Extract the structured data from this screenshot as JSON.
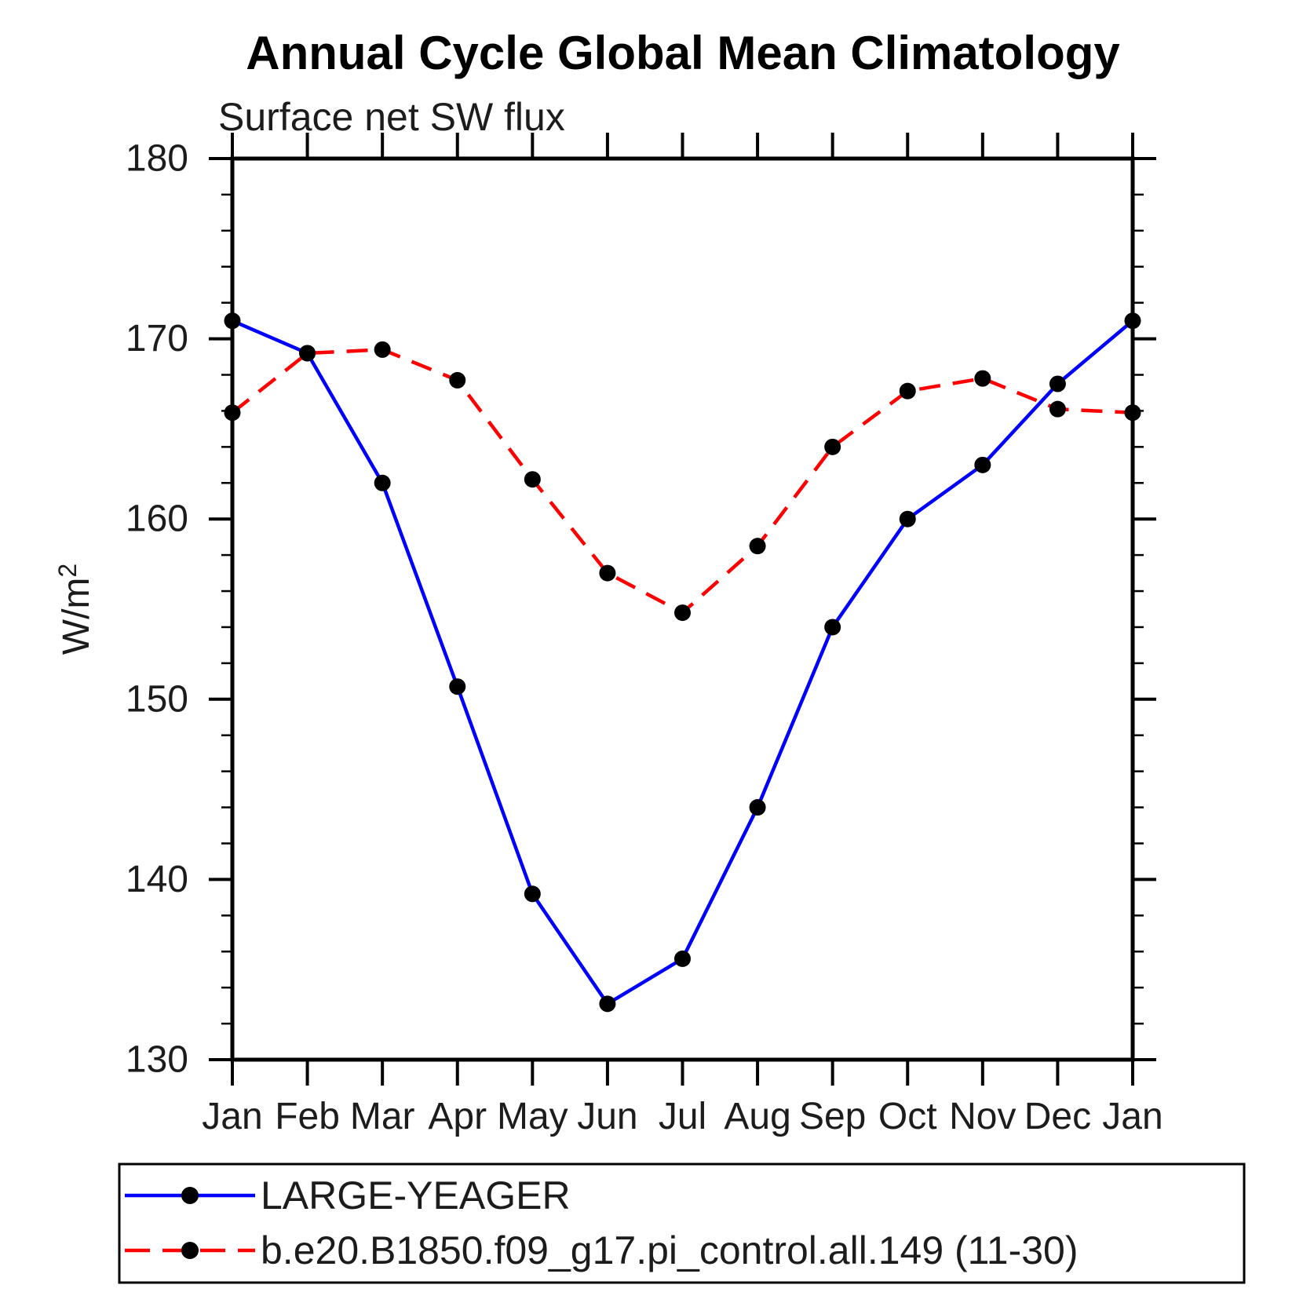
{
  "page": {
    "background": "#ffffff"
  },
  "chart_data": {
    "type": "line",
    "title": "Annual Cycle Global Mean Climatology",
    "subtitle": "Surface net SW flux",
    "ylabel": "W/m²",
    "ylabel_base": "W/m",
    "ylabel_sup": "2",
    "x_categories": [
      "Jan",
      "Feb",
      "Mar",
      "Apr",
      "May",
      "Jun",
      "Jul",
      "Aug",
      "Sep",
      "Oct",
      "Nov",
      "Dec",
      "Jan"
    ],
    "ylim": [
      130,
      180
    ],
    "ytick_major_step": 10,
    "ytick_minor_step": 2,
    "grid": false,
    "legend_position": "bottom-left",
    "axis_color": "#000000",
    "marker_color": "#000000",
    "series": [
      {
        "name": "LARGE-YEAGER",
        "color": "#0000ff",
        "line_style": "solid",
        "marker": "circle",
        "values": [
          171.0,
          169.2,
          162.0,
          150.7,
          139.2,
          133.1,
          135.6,
          144.0,
          154.0,
          160.0,
          163.0,
          167.5,
          171.0
        ]
      },
      {
        "name": "b.e20.B1850.f09_g17.pi_control.all.149 (11-30)",
        "color": "#ff0000",
        "line_style": "dashed",
        "marker": "circle",
        "values": [
          165.9,
          169.2,
          169.4,
          167.7,
          162.2,
          157.0,
          154.8,
          158.5,
          164.0,
          167.1,
          167.8,
          166.1,
          165.9
        ]
      }
    ]
  }
}
